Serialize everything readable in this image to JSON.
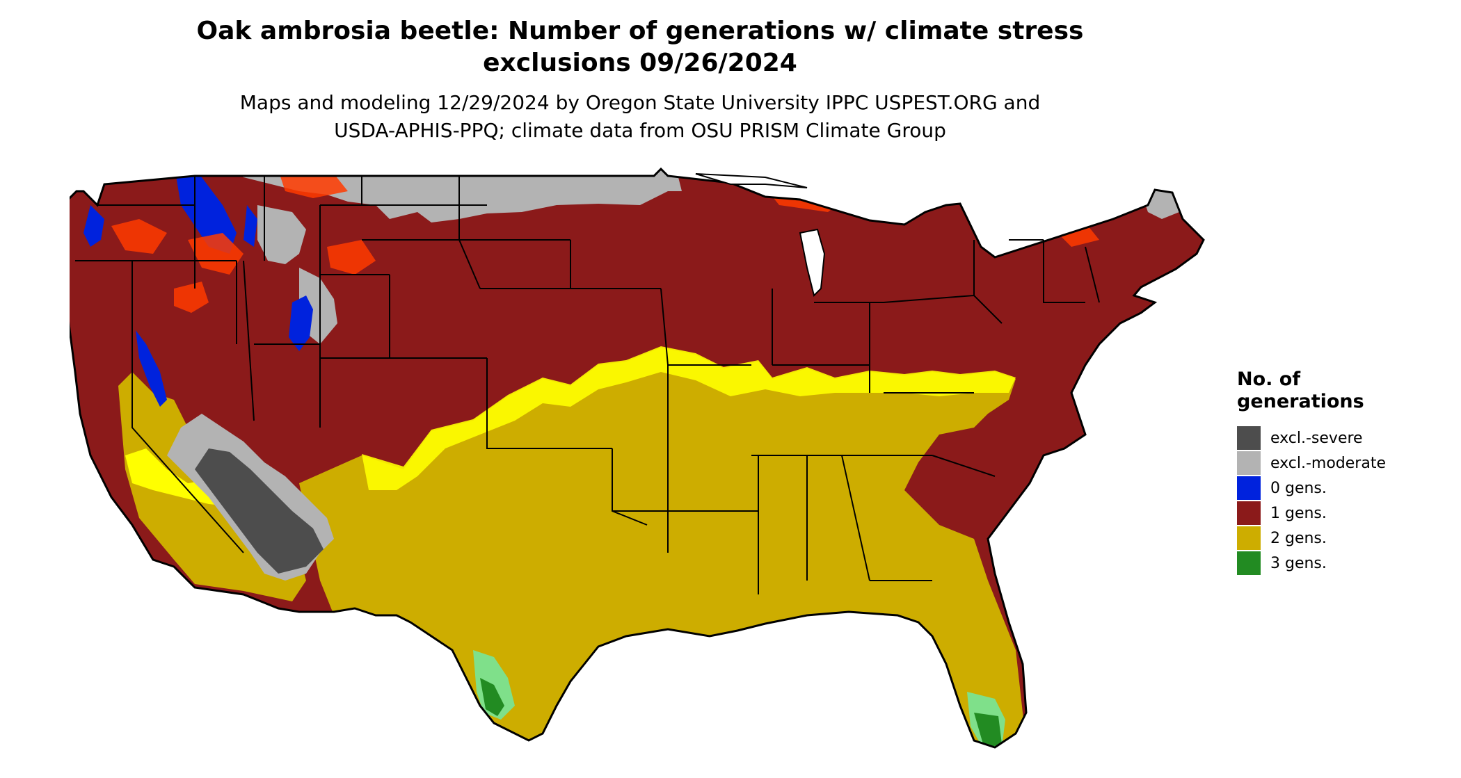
{
  "header": {
    "title_line1": "Oak ambrosia beetle: Number of generations w/ climate stress",
    "title_line2": "exclusions 09/26/2024",
    "subtitle_line1": "Maps and modeling 12/29/2024 by Oregon State University IPPC USPEST.ORG and",
    "subtitle_line2": "USDA-APHIS-PPQ; climate data from OSU PRISM Climate Group"
  },
  "legend": {
    "title_line1": "No. of",
    "title_line2": "generations",
    "items": [
      {
        "label": "excl.-severe",
        "color": "#4d4d4d"
      },
      {
        "label": "excl.-moderate",
        "color": "#b3b3b3"
      },
      {
        "label": "0 gens.",
        "color": "#0022dd"
      },
      {
        "label": "1 gens.",
        "color": "#8b1a1a"
      },
      {
        "label": "2 gens.",
        "color": "#cdad00"
      },
      {
        "label": "3 gens.",
        "color": "#228b22"
      }
    ]
  },
  "colors": {
    "severe": "#4d4d4d",
    "moderate": "#b3b3b3",
    "zero": "#0022dd",
    "one": "#8b1a1a",
    "one_highlight": "#ff3b00",
    "two": "#cdad00",
    "two_highlight": "#ffff00",
    "three": "#228b22",
    "three_highlight": "#7fe08a",
    "boundary": "#000000"
  }
}
